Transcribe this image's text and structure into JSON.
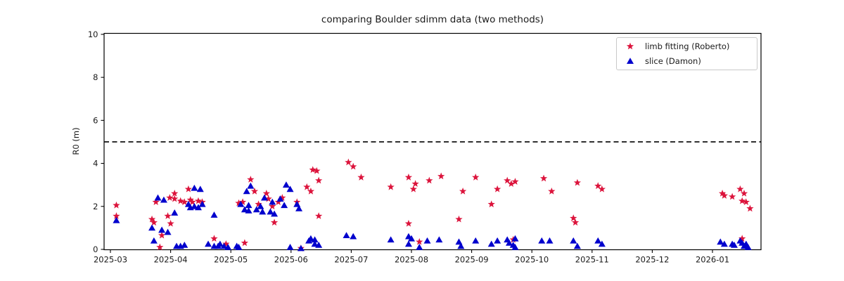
{
  "figure": {
    "background": "#ffffff"
  },
  "chart_data": {
    "type": "scatter",
    "title": "comparing Boulder sdimm data (two methods)",
    "xlabel": "",
    "ylabel": "R0 (m)",
    "ylim": [
      0,
      10
    ],
    "y_ticks": [
      0,
      2,
      4,
      6,
      8,
      10
    ],
    "x_tick_labels": [
      "2025-03",
      "2025-04",
      "2025-05",
      "2025-06",
      "2025-07",
      "2025-08",
      "2025-09",
      "2025-10",
      "2025-11",
      "2025-12",
      "2026-01"
    ],
    "grid": false,
    "legend_position": "upper right",
    "reference_line": {
      "y": 5,
      "style": "dashed",
      "color": "#000000"
    },
    "colors": {
      "limb": "#dc143c",
      "slice": "#0000cd",
      "axis": "#000000",
      "text": "#1a1a1a"
    },
    "series": [
      {
        "name": "limb fitting (Roberto)",
        "marker": "star",
        "color": "#dc143c",
        "points": [
          [
            "2025-03-04",
            2.05
          ],
          [
            "2025-03-04",
            1.55
          ],
          [
            "2025-03-22",
            1.4
          ],
          [
            "2025-03-23",
            1.25
          ],
          [
            "2025-03-24",
            2.2
          ],
          [
            "2025-03-26",
            0.1
          ],
          [
            "2025-03-27",
            0.65
          ],
          [
            "2025-03-30",
            1.55
          ],
          [
            "2025-03-31",
            2.4
          ],
          [
            "2025-04-01",
            1.2
          ],
          [
            "2025-04-03",
            2.35
          ],
          [
            "2025-04-03",
            2.6
          ],
          [
            "2025-04-06",
            2.25
          ],
          [
            "2025-04-08",
            2.2
          ],
          [
            "2025-04-10",
            2.8
          ],
          [
            "2025-04-11",
            2.3
          ],
          [
            "2025-04-12",
            2.2
          ],
          [
            "2025-04-15",
            2.25
          ],
          [
            "2025-04-17",
            2.2
          ],
          [
            "2025-04-23",
            0.5
          ],
          [
            "2025-04-29",
            0.25
          ],
          [
            "2025-05-05",
            2.15
          ],
          [
            "2025-05-07",
            2.2
          ],
          [
            "2025-05-08",
            0.3
          ],
          [
            "2025-05-11",
            3.25
          ],
          [
            "2025-05-13",
            2.7
          ],
          [
            "2025-05-15",
            2.1
          ],
          [
            "2025-05-19",
            2.6
          ],
          [
            "2025-05-20",
            2.35
          ],
          [
            "2025-05-22",
            2.0
          ],
          [
            "2025-05-23",
            1.25
          ],
          [
            "2025-05-25",
            2.2
          ],
          [
            "2025-05-27",
            2.4
          ],
          [
            "2025-06-04",
            2.2
          ],
          [
            "2025-06-06",
            0.05
          ],
          [
            "2025-06-09",
            2.9
          ],
          [
            "2025-06-11",
            2.7
          ],
          [
            "2025-06-12",
            3.7
          ],
          [
            "2025-06-14",
            3.65
          ],
          [
            "2025-06-15",
            3.2
          ],
          [
            "2025-06-15",
            1.55
          ],
          [
            "2025-06-30",
            4.05
          ],
          [
            "2025-07-02",
            3.85
          ],
          [
            "2025-07-06",
            3.35
          ],
          [
            "2025-07-21",
            2.9
          ],
          [
            "2025-07-30",
            1.2
          ],
          [
            "2025-07-30",
            3.35
          ],
          [
            "2025-08-02",
            2.8
          ],
          [
            "2025-08-03",
            3.05
          ],
          [
            "2025-08-05",
            0.35
          ],
          [
            "2025-08-10",
            3.2
          ],
          [
            "2025-08-16",
            3.4
          ],
          [
            "2025-08-25",
            1.4
          ],
          [
            "2025-08-27",
            2.7
          ],
          [
            "2025-09-03",
            3.35
          ],
          [
            "2025-09-11",
            2.1
          ],
          [
            "2025-09-14",
            2.8
          ],
          [
            "2025-09-19",
            3.2
          ],
          [
            "2025-09-21",
            3.05
          ],
          [
            "2025-09-22",
            0.45
          ],
          [
            "2025-09-23",
            3.15
          ],
          [
            "2025-10-07",
            3.3
          ],
          [
            "2025-10-11",
            2.7
          ],
          [
            "2025-10-22",
            1.45
          ],
          [
            "2025-10-23",
            1.25
          ],
          [
            "2025-10-24",
            3.1
          ],
          [
            "2025-11-04",
            2.95
          ],
          [
            "2025-11-06",
            2.8
          ],
          [
            "2026-01-06",
            2.6
          ],
          [
            "2026-01-07",
            2.5
          ],
          [
            "2026-01-11",
            2.45
          ],
          [
            "2026-01-15",
            2.8
          ],
          [
            "2026-01-16",
            0.5
          ],
          [
            "2026-01-16",
            2.25
          ],
          [
            "2026-01-17",
            2.6
          ],
          [
            "2026-01-18",
            2.2
          ],
          [
            "2026-01-20",
            1.9
          ]
        ]
      },
      {
        "name": "slice (Damon)",
        "marker": "triangle",
        "color": "#0000cd",
        "points": [
          [
            "2025-03-04",
            1.35
          ],
          [
            "2025-03-22",
            1.0
          ],
          [
            "2025-03-23",
            0.4
          ],
          [
            "2025-03-25",
            2.4
          ],
          [
            "2025-03-27",
            0.9
          ],
          [
            "2025-03-28",
            2.3
          ],
          [
            "2025-03-30",
            0.8
          ],
          [
            "2025-04-03",
            1.7
          ],
          [
            "2025-04-04",
            0.15
          ],
          [
            "2025-04-06",
            0.15
          ],
          [
            "2025-04-08",
            0.2
          ],
          [
            "2025-04-10",
            2.1
          ],
          [
            "2025-04-11",
            1.95
          ],
          [
            "2025-04-13",
            2.85
          ],
          [
            "2025-04-13",
            2.0
          ],
          [
            "2025-04-15",
            1.95
          ],
          [
            "2025-04-16",
            2.8
          ],
          [
            "2025-04-17",
            2.1
          ],
          [
            "2025-04-20",
            0.25
          ],
          [
            "2025-04-23",
            1.6
          ],
          [
            "2025-04-23",
            0.15
          ],
          [
            "2025-04-25",
            0.15
          ],
          [
            "2025-04-26",
            0.25
          ],
          [
            "2025-04-28",
            0.15
          ],
          [
            "2025-04-30",
            0.1
          ],
          [
            "2025-05-04",
            0.15
          ],
          [
            "2025-05-05",
            0.1
          ],
          [
            "2025-05-06",
            2.1
          ],
          [
            "2025-05-08",
            1.85
          ],
          [
            "2025-05-09",
            2.7
          ],
          [
            "2025-05-10",
            2.05
          ],
          [
            "2025-05-10",
            1.8
          ],
          [
            "2025-05-11",
            2.95
          ],
          [
            "2025-05-14",
            1.85
          ],
          [
            "2025-05-16",
            2.0
          ],
          [
            "2025-05-17",
            1.75
          ],
          [
            "2025-05-18",
            2.4
          ],
          [
            "2025-05-21",
            1.75
          ],
          [
            "2025-05-22",
            2.2
          ],
          [
            "2025-05-23",
            1.65
          ],
          [
            "2025-05-26",
            2.35
          ],
          [
            "2025-05-28",
            2.05
          ],
          [
            "2025-05-29",
            3.0
          ],
          [
            "2025-05-31",
            2.8
          ],
          [
            "2025-05-31",
            0.1
          ],
          [
            "2025-06-04",
            2.1
          ],
          [
            "2025-06-05",
            1.9
          ],
          [
            "2025-06-06",
            0.05
          ],
          [
            "2025-06-10",
            0.4
          ],
          [
            "2025-06-11",
            0.5
          ],
          [
            "2025-06-13",
            0.45
          ],
          [
            "2025-06-13",
            0.25
          ],
          [
            "2025-06-15",
            0.2
          ],
          [
            "2025-06-29",
            0.65
          ],
          [
            "2025-07-02",
            0.6
          ],
          [
            "2025-07-21",
            0.45
          ],
          [
            "2025-07-30",
            0.25
          ],
          [
            "2025-07-30",
            0.6
          ],
          [
            "2025-08-01",
            0.5
          ],
          [
            "2025-08-05",
            0.1
          ],
          [
            "2025-08-09",
            0.4
          ],
          [
            "2025-08-15",
            0.45
          ],
          [
            "2025-08-25",
            0.35
          ],
          [
            "2025-08-26",
            0.15
          ],
          [
            "2025-09-03",
            0.4
          ],
          [
            "2025-09-11",
            0.25
          ],
          [
            "2025-09-14",
            0.4
          ],
          [
            "2025-09-19",
            0.45
          ],
          [
            "2025-09-20",
            0.3
          ],
          [
            "2025-09-22",
            0.2
          ],
          [
            "2025-09-23",
            0.5
          ],
          [
            "2025-09-23",
            0.1
          ],
          [
            "2025-10-06",
            0.4
          ],
          [
            "2025-10-10",
            0.4
          ],
          [
            "2025-10-22",
            0.4
          ],
          [
            "2025-10-24",
            0.15
          ],
          [
            "2025-11-04",
            0.4
          ],
          [
            "2025-11-06",
            0.25
          ],
          [
            "2026-01-05",
            0.35
          ],
          [
            "2026-01-07",
            0.25
          ],
          [
            "2026-01-11",
            0.25
          ],
          [
            "2026-01-12",
            0.2
          ],
          [
            "2026-01-15",
            0.4
          ],
          [
            "2026-01-16",
            0.3
          ],
          [
            "2026-01-17",
            0.15
          ],
          [
            "2026-01-18",
            0.25
          ],
          [
            "2026-01-19",
            0.1
          ]
        ]
      }
    ]
  }
}
